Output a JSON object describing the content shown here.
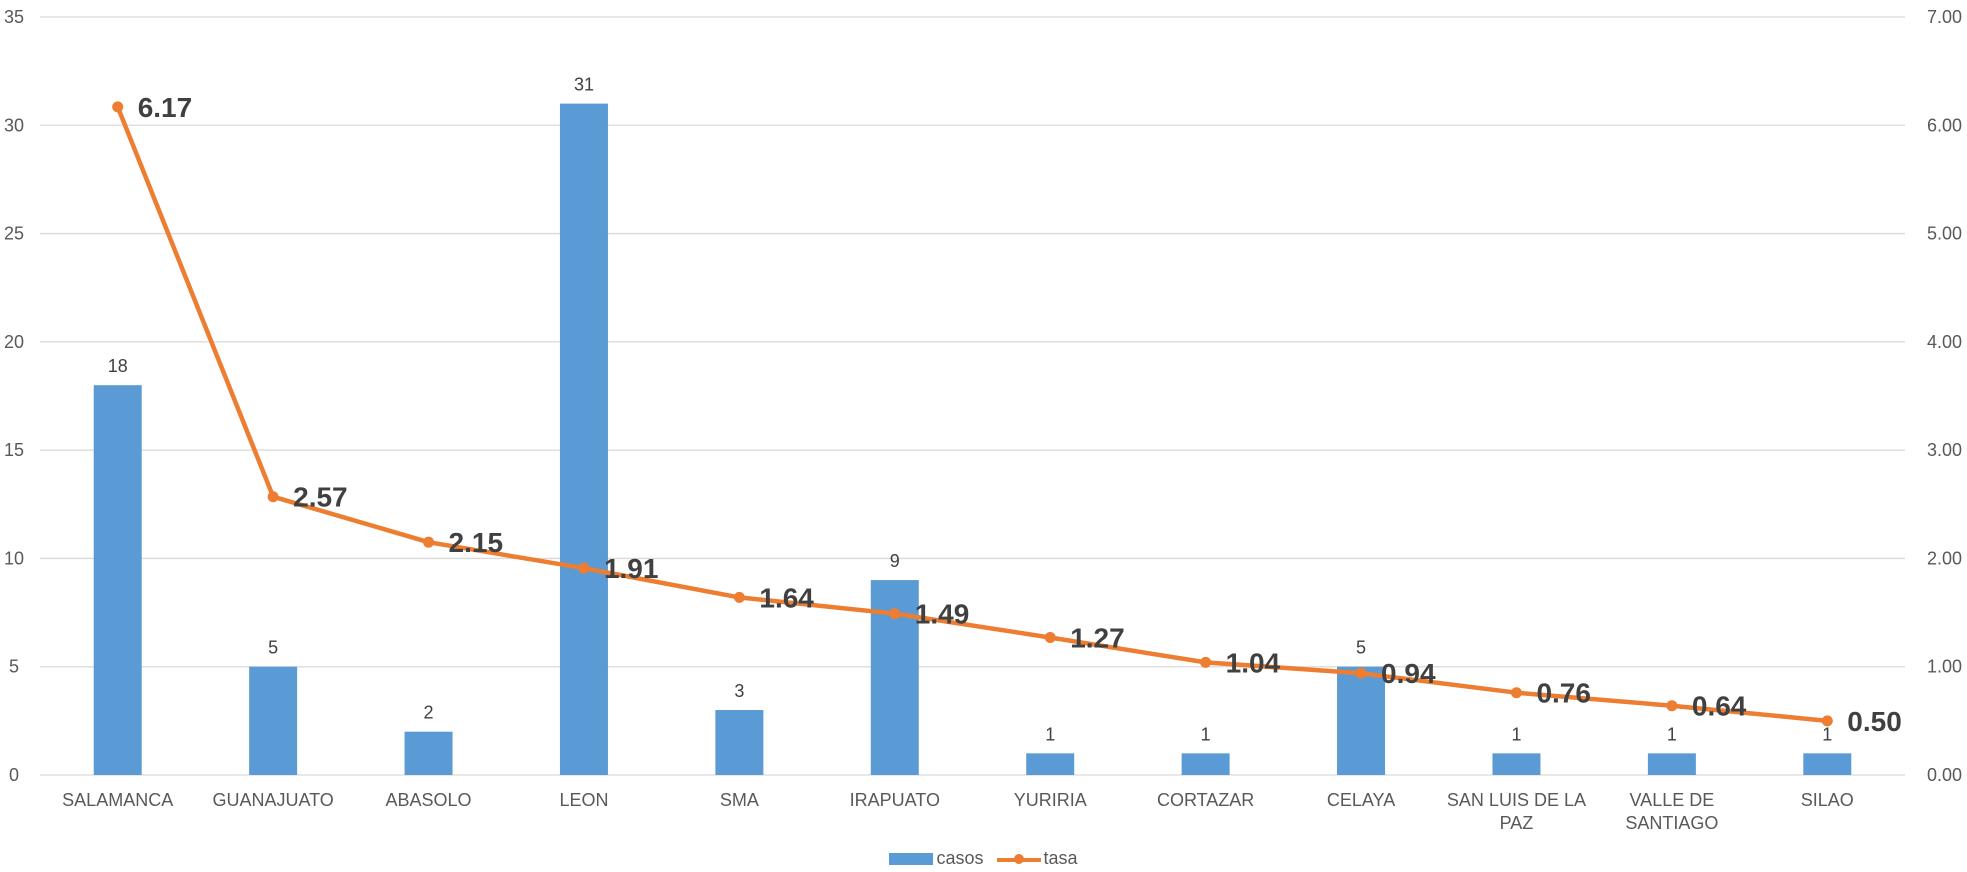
{
  "chart_data": {
    "type": "bar",
    "title": "",
    "categories": [
      "SALAMANCA",
      "GUANAJUATO",
      "ABASOLO",
      "LEON",
      "SMA",
      "IRAPUATO",
      "YURIRIA",
      "CORTAZAR",
      "CELAYA",
      "SAN LUIS DE LA PAZ",
      "VALLE DE SANTIAGO",
      "SILAO"
    ],
    "category_lines": [
      [
        "SALAMANCA"
      ],
      [
        "GUANAJUATO"
      ],
      [
        "ABASOLO"
      ],
      [
        "LEON"
      ],
      [
        "SMA"
      ],
      [
        "IRAPUATO"
      ],
      [
        "YURIRIA"
      ],
      [
        "CORTAZAR"
      ],
      [
        "CELAYA"
      ],
      [
        "SAN LUIS DE LA",
        "PAZ"
      ],
      [
        "VALLE DE",
        "SANTIAGO"
      ],
      [
        "SILAO"
      ]
    ],
    "series": [
      {
        "name": "casos",
        "type": "bar",
        "axis": "left",
        "color": "#5B9BD5",
        "values": [
          18,
          5,
          2,
          31,
          3,
          9,
          1,
          1,
          5,
          1,
          1,
          1
        ]
      },
      {
        "name": "tasa",
        "type": "line",
        "axis": "right",
        "color": "#ED7D31",
        "values": [
          6.17,
          2.57,
          2.15,
          1.91,
          1.64,
          1.49,
          1.27,
          1.04,
          0.94,
          0.76,
          0.64,
          0.5
        ],
        "labels": [
          "6.17",
          "2.57",
          "2.15",
          "1.91",
          "1.64",
          "1.49",
          "1.27",
          "1.04",
          "0.94",
          "0.76",
          "0.64",
          "0.50"
        ]
      }
    ],
    "y_left": {
      "min": 0,
      "max": 35,
      "ticks": [
        "0",
        "5",
        "10",
        "15",
        "20",
        "25",
        "30",
        "35"
      ]
    },
    "y_right": {
      "min": 0,
      "max": 7,
      "ticks": [
        "0.00",
        "1.00",
        "2.00",
        "3.00",
        "4.00",
        "5.00",
        "6.00",
        "7.00"
      ]
    },
    "grid": true,
    "legend": {
      "position": "bottom",
      "items": [
        "casos",
        "tasa"
      ]
    },
    "gridline_color": "#D9D9D9"
  }
}
